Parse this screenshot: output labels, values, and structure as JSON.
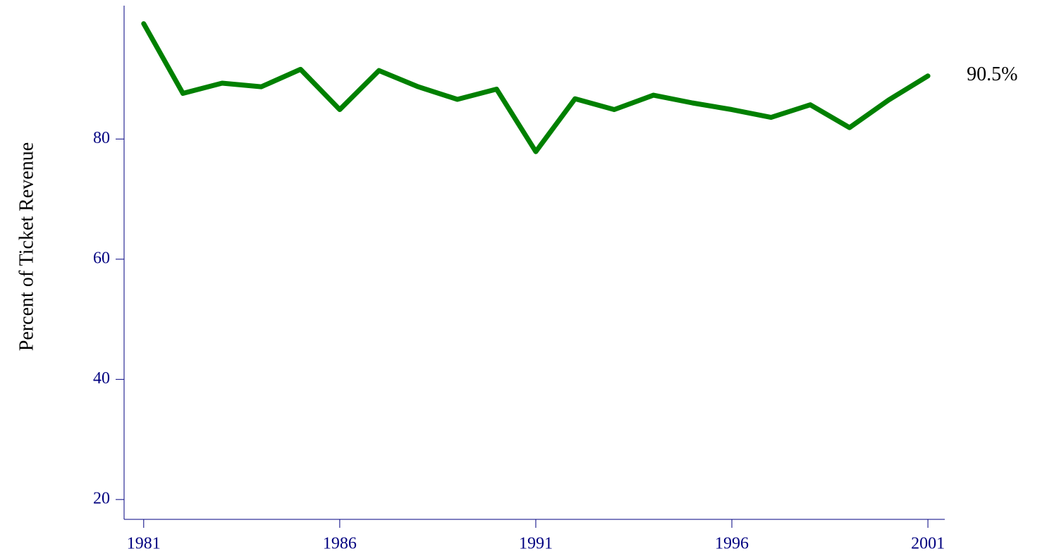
{
  "chart_data": {
    "type": "line",
    "y_label": "Percent of Ticket Revenue",
    "x": [
      1981,
      1982,
      1983,
      1984,
      1985,
      1986,
      1987,
      1988,
      1989,
      1990,
      1991,
      1992,
      1993,
      1994,
      1995,
      1996,
      1997,
      1998,
      1999,
      2000,
      2001
    ],
    "series": [
      {
        "color": "#008000",
        "values": [
          99.2,
          87.6,
          89.3,
          88.7,
          91.6,
          84.9,
          91.4,
          88.7,
          86.6,
          88.3,
          77.9,
          86.7,
          84.9,
          87.3,
          86.0,
          84.9,
          83.6,
          85.7,
          81.9,
          86.5,
          90.5
        ],
        "value_labels": [
          null,
          null,
          null,
          null,
          null,
          null,
          null,
          null,
          null,
          null,
          null,
          null,
          null,
          null,
          null,
          null,
          null,
          null,
          null,
          null,
          "90.5%"
        ]
      }
    ],
    "xlim": [
      1980.5,
      2001.43
    ],
    "xticks": [
      1981,
      1986,
      1991,
      1996,
      2001
    ],
    "ylim": [
      16.7,
      102.2
    ],
    "yticks": [
      20,
      40,
      60,
      80
    ],
    "axis_color": "#000080",
    "grid": false
  }
}
